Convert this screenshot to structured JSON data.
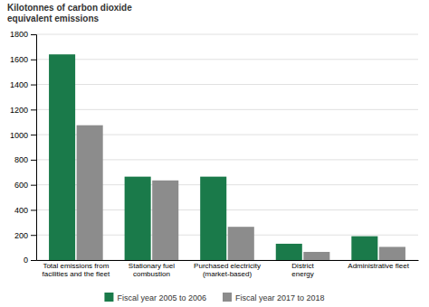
{
  "chart_data": {
    "type": "bar",
    "ylabel": "Kilotonnes of carbon dioxide\nequivalent emissions",
    "categories": [
      "Total emissions from\nfacilities and the fleet",
      "Stationary fuel\ncombustion",
      "Purchased electricity\n(market-based)",
      "District\nenergy",
      "Administrative fleet"
    ],
    "series": [
      {
        "name": "Fiscal year 2005 to 2006",
        "color": "#1a7a4a",
        "values": [
          1640,
          665,
          665,
          130,
          190
        ]
      },
      {
        "name": "Fiscal year 2017 to 2018",
        "color": "#8c8c8c",
        "values": [
          1075,
          635,
          265,
          65,
          105
        ]
      }
    ],
    "ylim": [
      0,
      1800
    ],
    "yticks": [
      0,
      200,
      400,
      600,
      800,
      1000,
      1200,
      1400,
      1600,
      1800
    ],
    "grid": true,
    "legend": "bottom"
  }
}
